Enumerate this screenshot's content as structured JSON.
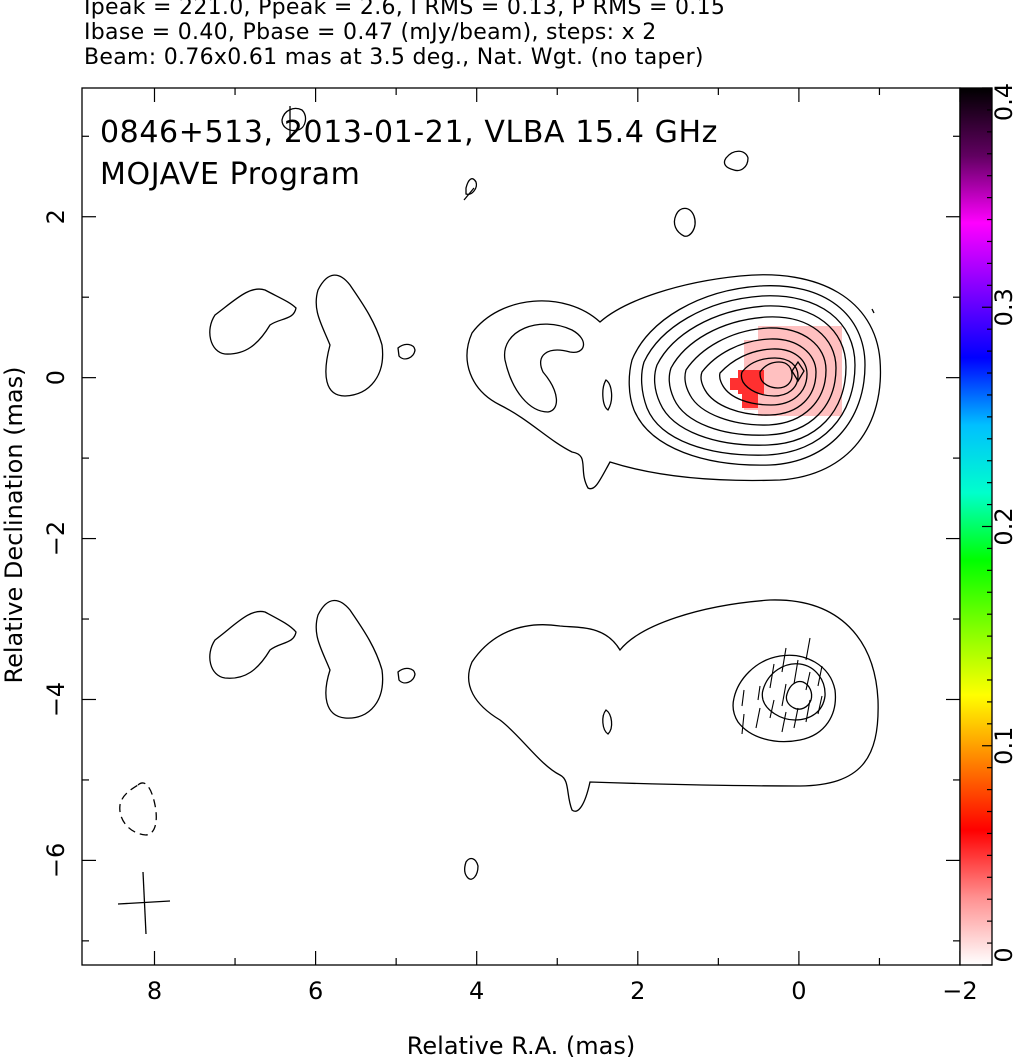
{
  "header": {
    "line1": "Ipeak = 221.0, Ppeak = 2.6, I RMS = 0.13, P RMS = 0.15",
    "line2": "Ibase = 0.40, Pbase = 0.47 (mJy/beam), steps: x 2",
    "line3": "Beam: 0.76x0.61 mas at 3.5 deg., Nat. Wgt. (no taper)"
  },
  "chart_data": {
    "type": "contour",
    "title_line1": "0846+513, 2013-01-21, VLBA 15.4 GHz",
    "title_line2": "MOJAVE Program",
    "xlabel": "Relative R.A. (mas)",
    "ylabel": "Relative Declination (mas)",
    "xlim": [
      8.9,
      -2
    ],
    "ylim": [
      -7.3,
      3.6
    ],
    "xticks": [
      8,
      6,
      4,
      2,
      0,
      -2
    ],
    "xtick_labels": [
      "8",
      "6",
      "4",
      "2",
      "0",
      "−2"
    ],
    "yticks": [
      2,
      0,
      -2,
      -4,
      -6
    ],
    "ytick_labels": [
      "2",
      "0",
      "−2",
      "−4",
      "−6"
    ],
    "colorbar": {
      "range": [
        0,
        0.4
      ],
      "ticks": [
        0,
        0.1,
        0.2,
        0.3,
        0.4
      ],
      "tick_labels": [
        "0",
        "0.1",
        "0.2",
        "0.3",
        "0.4"
      ],
      "stops": [
        "#ffffff",
        "#ff9090",
        "#ff0000",
        "#ff8000",
        "#ffff00",
        "#80ff00",
        "#00ff00",
        "#00ffcc",
        "#00c0ff",
        "#0000ff",
        "#8000ff",
        "#ff00ff",
        "#600060",
        "#000000"
      ]
    },
    "peak_position": [
      0,
      0
    ],
    "polarization_region_color": "#ffc0c0",
    "polarization_core_color": "#ff3030",
    "beam": {
      "major": 0.76,
      "minor": 0.61,
      "pa_deg": 3.5,
      "center": [
        8.1,
        -6.5
      ]
    }
  }
}
